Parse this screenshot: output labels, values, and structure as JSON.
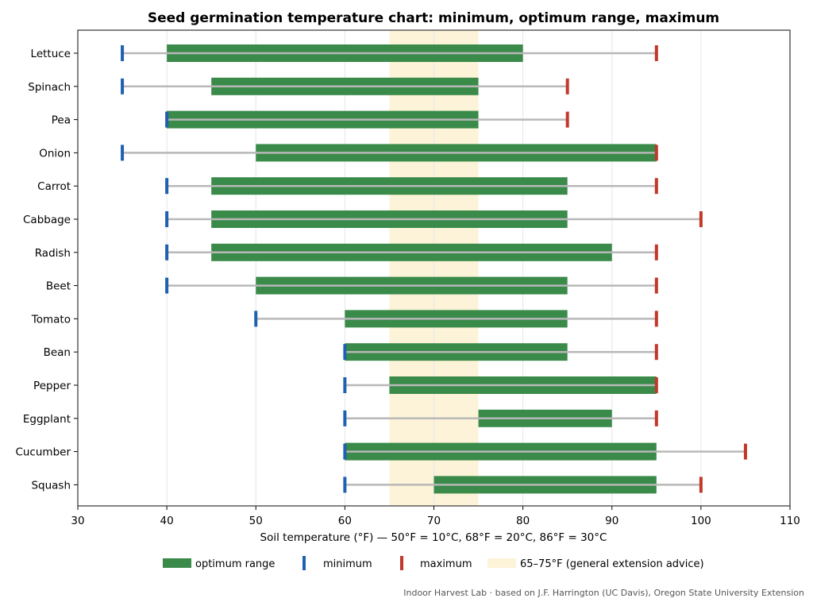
{
  "chart_data": {
    "type": "bar",
    "title": "Seed germination temperature chart: minimum, optimum range, maximum",
    "xlabel": "Soil temperature (°F)  —  50°F = 10°C, 68°F = 20°C, 86°F = 30°C",
    "ylabel": "",
    "xlim": [
      30,
      110
    ],
    "xticks": [
      30,
      40,
      50,
      60,
      70,
      80,
      90,
      100,
      110
    ],
    "grid": "vertical",
    "legend_position": "bottom-center",
    "categories": [
      "Lettuce",
      "Spinach",
      "Pea",
      "Onion",
      "Carrot",
      "Cabbage",
      "Radish",
      "Beet",
      "Tomato",
      "Bean",
      "Pepper",
      "Eggplant",
      "Cucumber",
      "Squash"
    ],
    "series": [
      {
        "name": "optimum range",
        "color": "#3a8a4a",
        "low": [
          40,
          45,
          40,
          50,
          45,
          45,
          45,
          50,
          60,
          60,
          65,
          75,
          60,
          70
        ],
        "high": [
          80,
          75,
          75,
          95,
          85,
          85,
          90,
          85,
          85,
          85,
          95,
          90,
          95,
          95
        ]
      },
      {
        "name": "minimum",
        "color": "#2060b0",
        "values": [
          35,
          35,
          40,
          35,
          40,
          40,
          40,
          40,
          50,
          60,
          60,
          60,
          60,
          60
        ]
      },
      {
        "name": "maximum",
        "color": "#c0392b",
        "values": [
          95,
          85,
          85,
          95,
          95,
          100,
          95,
          95,
          95,
          95,
          95,
          95,
          105,
          100
        ]
      }
    ],
    "band": {
      "name": "65–75°F (general extension advice)",
      "from": 65,
      "to": 75,
      "color": "#fdf3d8"
    },
    "whisker_color": "#b8b8b8",
    "source": "Indoor Harvest Lab · based on J.F. Harrington (UC Davis), Oregon State University Extension"
  }
}
